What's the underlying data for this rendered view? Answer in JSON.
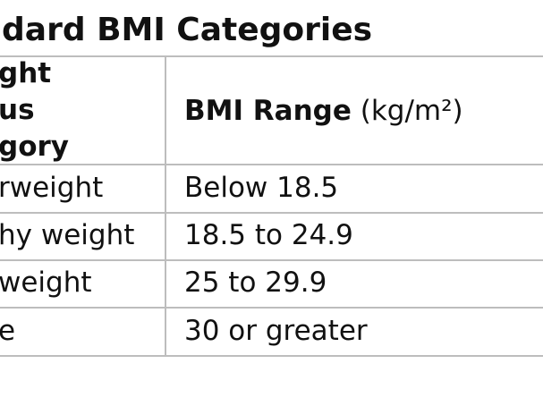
{
  "title": "dard BMI Categories",
  "table": {
    "header": [
      {
        "lines": [
          "ght",
          "us",
          "gory"
        ]
      },
      {
        "label": "BMI Range",
        "unit": "(kg/m²)"
      }
    ],
    "rows": [
      [
        "rweight",
        "Below 18.5"
      ],
      [
        "hy weight",
        "18.5 to 24.9"
      ],
      [
        "weight",
        "25 to 29.9"
      ],
      [
        "e",
        "30 or greater"
      ]
    ]
  }
}
